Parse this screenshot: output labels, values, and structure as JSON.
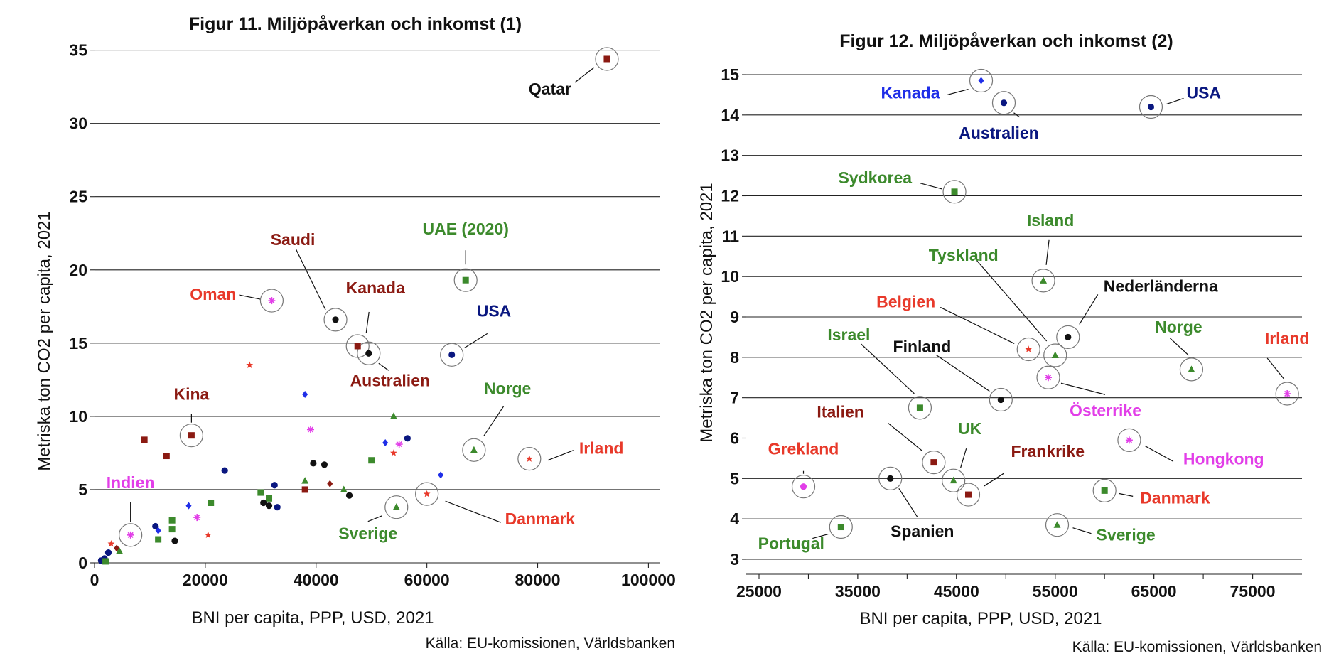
{
  "colors": {
    "darkred": "#8b1a12",
    "red": "#e8392a",
    "green": "#3c8a2c",
    "navy": "#0a1780",
    "blue": "#1f2ee8",
    "magenta": "#e23ee8",
    "black": "#111111"
  },
  "chart_data": [
    {
      "type": "scatter",
      "title": "Figur 11. Miljöpåverkan och inkomst (1)",
      "xlabel": "BNI per capita, PPP, USD, 2021",
      "ylabel": "Metriska ton CO2 per capita, 2021",
      "source": "Källa: EU-komissionen, Världsbanken",
      "xlim": [
        0,
        102000
      ],
      "ylim": [
        0,
        36
      ],
      "xticks": [
        0,
        20000,
        40000,
        60000,
        80000,
        100000
      ],
      "yticks": [
        0,
        5,
        10,
        15,
        20,
        25,
        30,
        35
      ],
      "grid": "horizontal",
      "labeled": [
        {
          "label": "Qatar",
          "x": 92500,
          "y": 34.4,
          "marker": "square",
          "color": "darkred",
          "text_color": "black"
        },
        {
          "label": "Saudi",
          "x": 43500,
          "y": 16.6,
          "marker": "circle",
          "color": "black",
          "text_color": "darkred"
        },
        {
          "label": "Oman",
          "x": 32000,
          "y": 17.9,
          "marker": "asterisk",
          "color": "magenta",
          "text_color": "red"
        },
        {
          "label": "Kanada",
          "x": 47500,
          "y": 14.8,
          "marker": "square",
          "color": "darkred",
          "text_color": "darkred"
        },
        {
          "label": "Australien",
          "x": 49500,
          "y": 14.3,
          "marker": "circle",
          "color": "black",
          "text_color": "darkred"
        },
        {
          "label": "UAE (2020)",
          "x": 67000,
          "y": 19.3,
          "marker": "square",
          "color": "green",
          "text_color": "green"
        },
        {
          "label": "USA",
          "x": 64500,
          "y": 14.2,
          "marker": "circle",
          "color": "navy",
          "text_color": "navy"
        },
        {
          "label": "Kina",
          "x": 17500,
          "y": 8.7,
          "marker": "square",
          "color": "darkred",
          "text_color": "darkred"
        },
        {
          "label": "Norge",
          "x": 68500,
          "y": 7.7,
          "marker": "triangle",
          "color": "green",
          "text_color": "green"
        },
        {
          "label": "Irland",
          "x": 78500,
          "y": 7.1,
          "marker": "star",
          "color": "red",
          "text_color": "red"
        },
        {
          "label": "Indien",
          "x": 6500,
          "y": 1.9,
          "marker": "asterisk",
          "color": "magenta",
          "text_color": "magenta"
        },
        {
          "label": "Sverige",
          "x": 54500,
          "y": 3.8,
          "marker": "triangle",
          "color": "green",
          "text_color": "green"
        },
        {
          "label": "Danmark",
          "x": 60000,
          "y": 4.7,
          "marker": "star",
          "color": "red",
          "text_color": "red"
        }
      ],
      "points": [
        {
          "x": 28000,
          "y": 13.5,
          "marker": "star",
          "color": "red"
        },
        {
          "x": 38000,
          "y": 11.5,
          "marker": "diamond",
          "color": "blue"
        },
        {
          "x": 39000,
          "y": 9.1,
          "marker": "asterisk",
          "color": "magenta"
        },
        {
          "x": 54000,
          "y": 10.0,
          "marker": "triangle",
          "color": "green"
        },
        {
          "x": 52500,
          "y": 8.2,
          "marker": "diamond",
          "color": "blue"
        },
        {
          "x": 55000,
          "y": 8.1,
          "marker": "asterisk",
          "color": "magenta"
        },
        {
          "x": 56500,
          "y": 8.5,
          "marker": "circle",
          "color": "navy"
        },
        {
          "x": 54000,
          "y": 7.5,
          "marker": "star",
          "color": "red"
        },
        {
          "x": 62500,
          "y": 6.0,
          "marker": "diamond",
          "color": "blue"
        },
        {
          "x": 9000,
          "y": 8.4,
          "marker": "square",
          "color": "darkred"
        },
        {
          "x": 13000,
          "y": 7.3,
          "marker": "square",
          "color": "darkred"
        },
        {
          "x": 23500,
          "y": 6.3,
          "marker": "circle",
          "color": "navy"
        },
        {
          "x": 32500,
          "y": 5.3,
          "marker": "circle",
          "color": "navy"
        },
        {
          "x": 39500,
          "y": 6.8,
          "marker": "circle",
          "color": "black"
        },
        {
          "x": 41500,
          "y": 6.7,
          "marker": "circle",
          "color": "black"
        },
        {
          "x": 38000,
          "y": 5.6,
          "marker": "triangle",
          "color": "green"
        },
        {
          "x": 38000,
          "y": 5.0,
          "marker": "square",
          "color": "darkred"
        },
        {
          "x": 42500,
          "y": 5.4,
          "marker": "diamond",
          "color": "darkred"
        },
        {
          "x": 45000,
          "y": 5.0,
          "marker": "triangle",
          "color": "green"
        },
        {
          "x": 46000,
          "y": 4.6,
          "marker": "circle",
          "color": "black"
        },
        {
          "x": 50000,
          "y": 7.0,
          "marker": "square",
          "color": "green"
        },
        {
          "x": 30000,
          "y": 4.8,
          "marker": "square",
          "color": "green"
        },
        {
          "x": 31500,
          "y": 4.4,
          "marker": "square",
          "color": "green"
        },
        {
          "x": 30500,
          "y": 4.1,
          "marker": "circle",
          "color": "black"
        },
        {
          "x": 31500,
          "y": 3.9,
          "marker": "circle",
          "color": "black"
        },
        {
          "x": 33000,
          "y": 3.8,
          "marker": "circle",
          "color": "navy"
        },
        {
          "x": 21000,
          "y": 4.1,
          "marker": "square",
          "color": "green"
        },
        {
          "x": 17000,
          "y": 3.9,
          "marker": "diamond",
          "color": "blue"
        },
        {
          "x": 18500,
          "y": 3.1,
          "marker": "asterisk",
          "color": "magenta"
        },
        {
          "x": 20500,
          "y": 1.9,
          "marker": "star",
          "color": "red"
        },
        {
          "x": 14000,
          "y": 2.9,
          "marker": "square",
          "color": "green"
        },
        {
          "x": 14000,
          "y": 2.3,
          "marker": "square",
          "color": "green"
        },
        {
          "x": 14500,
          "y": 1.5,
          "marker": "circle",
          "color": "black"
        },
        {
          "x": 11000,
          "y": 2.5,
          "marker": "circle",
          "color": "navy"
        },
        {
          "x": 11500,
          "y": 2.2,
          "marker": "diamond",
          "color": "blue"
        },
        {
          "x": 11500,
          "y": 1.6,
          "marker": "square",
          "color": "green"
        },
        {
          "x": 3000,
          "y": 1.3,
          "marker": "star",
          "color": "red"
        },
        {
          "x": 4000,
          "y": 1.0,
          "marker": "diamond",
          "color": "darkred"
        },
        {
          "x": 4500,
          "y": 0.8,
          "marker": "triangle",
          "color": "green"
        },
        {
          "x": 2500,
          "y": 0.7,
          "marker": "circle",
          "color": "navy"
        },
        {
          "x": 1800,
          "y": 0.3,
          "marker": "circle",
          "color": "navy"
        },
        {
          "x": 1200,
          "y": 0.15,
          "marker": "circle",
          "color": "navy"
        },
        {
          "x": 2000,
          "y": 0.1,
          "marker": "square",
          "color": "green"
        }
      ]
    },
    {
      "type": "scatter",
      "title": "Figur 12. Miljöpåverkan och inkomst (2)",
      "xlabel": "BNI per capita, PPP, USD, 2021",
      "ylabel": "Metriska ton CO2 per capita, 2021",
      "source": "Källa: EU-komissionen, Världsbanken",
      "xlim": [
        25000,
        80000
      ],
      "ylim": [
        3,
        15
      ],
      "xticks": [
        25000,
        35000,
        45000,
        55000,
        65000,
        75000
      ],
      "yticks": [
        3,
        4,
        5,
        6,
        7,
        8,
        9,
        10,
        11,
        12,
        13,
        14,
        15
      ],
      "grid": "horizontal",
      "labeled": [
        {
          "label": "Kanada",
          "x": 47500,
          "y": 14.85,
          "marker": "diamond",
          "color": "blue",
          "text_color": "blue"
        },
        {
          "label": "Australien",
          "x": 49800,
          "y": 14.3,
          "marker": "circle",
          "color": "navy",
          "text_color": "navy"
        },
        {
          "label": "USA",
          "x": 64700,
          "y": 14.2,
          "marker": "circle",
          "color": "navy",
          "text_color": "navy"
        },
        {
          "label": "Sydkorea",
          "x": 44800,
          "y": 12.1,
          "marker": "square",
          "color": "green",
          "text_color": "green"
        },
        {
          "label": "Island",
          "x": 53800,
          "y": 9.9,
          "marker": "triangle",
          "color": "green",
          "text_color": "green"
        },
        {
          "label": "Tyskland",
          "x": 55000,
          "y": 8.05,
          "marker": "triangle",
          "color": "green",
          "text_color": "green"
        },
        {
          "label": "Nederländerna",
          "x": 56300,
          "y": 8.5,
          "marker": "circle",
          "color": "black",
          "text_color": "black"
        },
        {
          "label": "Belgien",
          "x": 52300,
          "y": 8.2,
          "marker": "star",
          "color": "red",
          "text_color": "red"
        },
        {
          "label": "Norge",
          "x": 68800,
          "y": 7.7,
          "marker": "triangle",
          "color": "green",
          "text_color": "green"
        },
        {
          "label": "Irland",
          "x": 78500,
          "y": 7.1,
          "marker": "asterisk",
          "color": "magenta",
          "text_color": "red"
        },
        {
          "label": "Israel",
          "x": 41300,
          "y": 6.75,
          "marker": "square",
          "color": "green",
          "text_color": "green"
        },
        {
          "label": "Finland",
          "x": 49500,
          "y": 6.95,
          "marker": "circle",
          "color": "black",
          "text_color": "black"
        },
        {
          "label": "Österrike",
          "x": 54300,
          "y": 7.5,
          "marker": "asterisk",
          "color": "magenta",
          "text_color": "magenta"
        },
        {
          "label": "Italien",
          "x": 42700,
          "y": 5.4,
          "marker": "square",
          "color": "darkred",
          "text_color": "darkred"
        },
        {
          "label": "UK",
          "x": 44700,
          "y": 4.95,
          "marker": "triangle",
          "color": "green",
          "text_color": "green"
        },
        {
          "label": "Hongkong",
          "x": 62500,
          "y": 5.95,
          "marker": "asterisk",
          "color": "magenta",
          "text_color": "magenta"
        },
        {
          "label": "Grekland",
          "x": 29500,
          "y": 4.8,
          "marker": "circle",
          "color": "magenta",
          "text_color": "red"
        },
        {
          "label": "Frankrike",
          "x": 46200,
          "y": 4.6,
          "marker": "square",
          "color": "darkred",
          "text_color": "darkred"
        },
        {
          "label": "Spanien",
          "x": 38300,
          "y": 5.0,
          "marker": "circle",
          "color": "black",
          "text_color": "black"
        },
        {
          "label": "Danmark",
          "x": 60000,
          "y": 4.7,
          "marker": "square",
          "color": "green",
          "text_color": "red"
        },
        {
          "label": "Portugal",
          "x": 33300,
          "y": 3.8,
          "marker": "square",
          "color": "green",
          "text_color": "green"
        },
        {
          "label": "Sverige",
          "x": 55200,
          "y": 3.85,
          "marker": "triangle",
          "color": "green",
          "text_color": "green"
        }
      ],
      "points": []
    }
  ]
}
